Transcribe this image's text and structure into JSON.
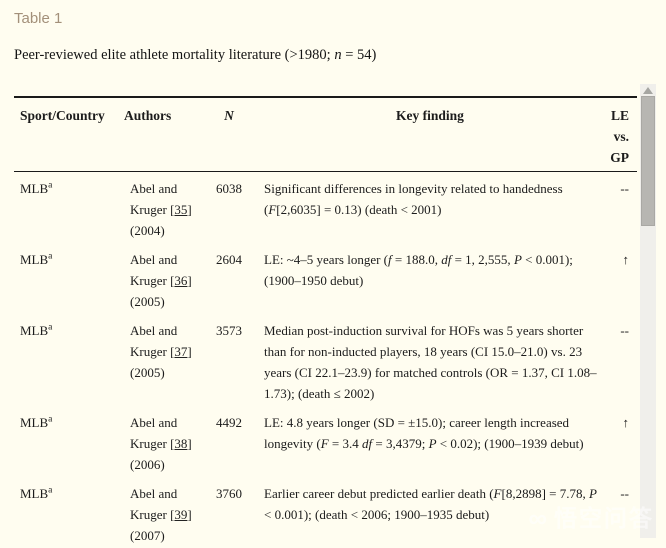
{
  "page": {
    "caption": "Table 1",
    "subtitle_prefix": "Peer-reviewed elite athlete mortality literature (>1980; ",
    "subtitle_n": "n",
    "subtitle_suffix": " = 54)"
  },
  "table": {
    "headers": {
      "sport": "Sport/Country",
      "authors": "Authors",
      "n": "N",
      "finding": "Key finding",
      "le": [
        "LE",
        "vs.",
        "GP"
      ]
    },
    "ref_open": "[",
    "ref_close": "]",
    "rows": [
      {
        "sport": "MLB",
        "sup": "a",
        "author_top": "Abel and",
        "author_bottom": "Kruger",
        "ref": "35",
        "year": "(2004)",
        "n": "6038",
        "finding": "Significant differences in longevity related to handedness (*F*[2,6035] = 0.13) (death < 2001)",
        "le": "--"
      },
      {
        "sport": "MLB",
        "sup": "a",
        "author_top": "Abel and",
        "author_bottom": "Kruger",
        "ref": "36",
        "year": "(2005)",
        "n": "2604",
        "finding": "LE: ~4–5 years longer (*f* = 188.0, *df* = 1, 2,555, *P* < 0.001); (1900–1950 debut)",
        "le": "↑"
      },
      {
        "sport": "MLB",
        "sup": "a",
        "author_top": "Abel and",
        "author_bottom": "Kruger",
        "ref": "37",
        "year": "(2005)",
        "n": "3573",
        "finding": "Median post-induction survival for HOFs was 5 years shorter than for non-inducted players, 18 years (CI 15.0–21.0) vs. 23 years (CI 22.1–23.9) for matched controls (OR = 1.37, CI 1.08–1.73); (death ≤ 2002)",
        "le": "--"
      },
      {
        "sport": "MLB",
        "sup": "a",
        "author_top": "Abel and",
        "author_bottom": "Kruger",
        "ref": "38",
        "year": "(2006)",
        "n": "4492",
        "finding": "LE: 4.8 years longer (SD = ±15.0); career length increased longevity (*F* = 3.4 *df* = 3,4379; *P* < 0.02); (1900–1939 debut)",
        "le": "↑"
      },
      {
        "sport": "MLB",
        "sup": "a",
        "author_top": "Abel and",
        "author_bottom": "Kruger",
        "ref": "39",
        "year": "(2007)",
        "n": "3760",
        "finding": "Earlier career debut predicted earlier death (*F*[8,2898] = 7.78, *P* < 0.001); (death < 2006; 1900–1935 debut)",
        "le": "--"
      }
    ]
  },
  "watermark": {
    "logo": "∞",
    "text": "悟空问答"
  },
  "colors": {
    "background": "#fffdf0",
    "caption": "#a3907a",
    "text": "#1c1c1c",
    "rule": "#1a1a1a",
    "scroll_track": "#f0efeb",
    "scroll_thumb": "#b7b6b2"
  }
}
